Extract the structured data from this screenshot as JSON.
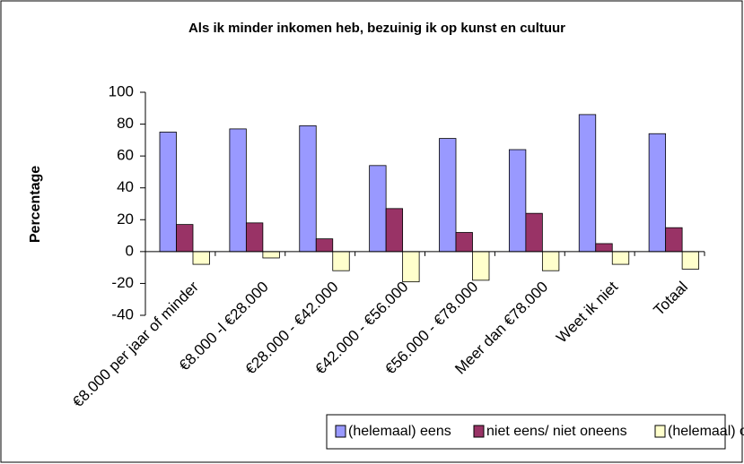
{
  "chart_data": {
    "type": "bar",
    "title": "Als ik minder inkomen heb, bezuinig ik op kunst en cultuur",
    "y_label": "Percentage",
    "categories": [
      "€8.000 per jaar of minder",
      "€8.000 -l €28.000",
      "€28.000 - €42.000",
      "€42.000 - €56.000",
      "€56.000 - €78.000",
      "Meer dan €78.000",
      "Weet ik niet",
      "Totaal"
    ],
    "series": [
      {
        "name": "(helemaal) eens",
        "color": "#9999ff",
        "values": [
          75,
          77,
          79,
          54,
          71,
          64,
          86,
          74
        ]
      },
      {
        "name": "niet eens/ niet oneens",
        "color": "#993366",
        "values": [
          17,
          18,
          8,
          27,
          12,
          24,
          5,
          15
        ]
      },
      {
        "name": "(helemaal) oneens",
        "color": "#ffffcc",
        "values": [
          -8,
          -4,
          -12,
          -19,
          -18,
          -12,
          -8,
          -11
        ]
      }
    ],
    "ylim": [
      -40,
      100
    ],
    "yticks": [
      -40,
      -20,
      0,
      20,
      40,
      60,
      80,
      100
    ],
    "legend": "bottom"
  }
}
